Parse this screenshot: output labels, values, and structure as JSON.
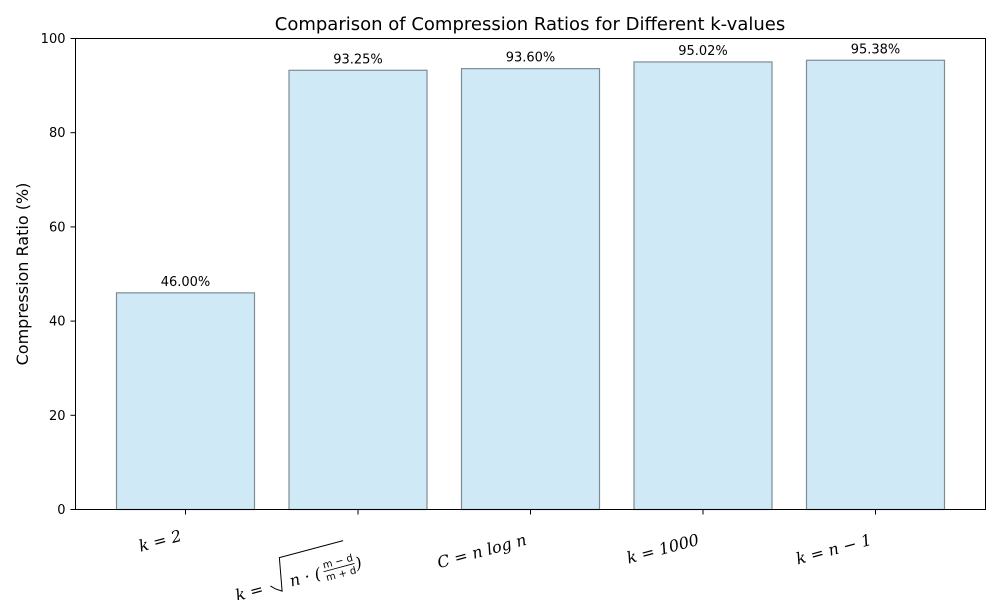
{
  "chart_data": {
    "type": "bar",
    "title": "Comparison of Compression Ratios for Different k-values",
    "xlabel": "",
    "ylabel": "Compression Ratio (%)",
    "ylim": [
      0,
      100
    ],
    "yticks": [
      0,
      20,
      40,
      60,
      80,
      100
    ],
    "grid": false,
    "categories": [
      "k = 2",
      "k = √( n · ((m − d)/(m + d)) )",
      "C = n log n",
      "k = 1000",
      "k = n − 1"
    ],
    "values": [
      46.0,
      93.25,
      93.6,
      95.02,
      95.38
    ],
    "data_labels": [
      "46.00%",
      "93.25%",
      "93.60%",
      "95.02%",
      "95.38%"
    ],
    "colors": {
      "bar_fill": "#cfe9f6",
      "bar_edge": "#7f8c95"
    }
  }
}
